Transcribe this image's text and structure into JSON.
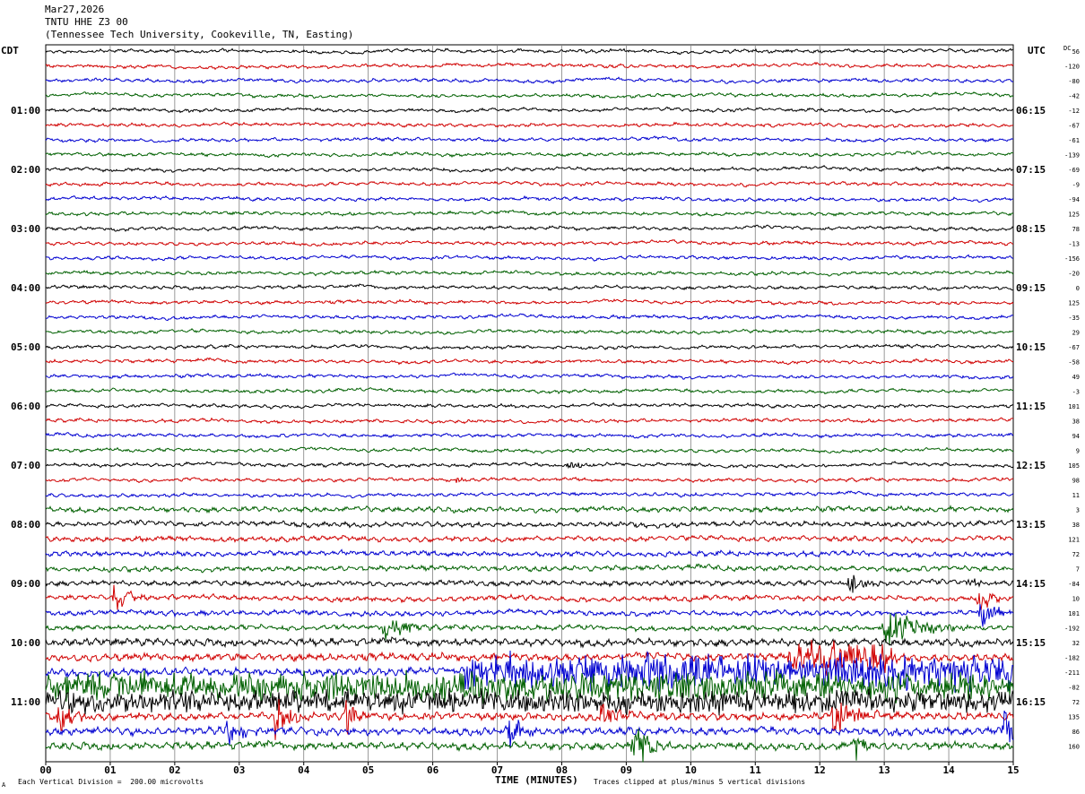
{
  "header": {
    "date": "Mar27,2026",
    "station": "TNTU HHE Z3 00",
    "location": "(Tennessee Tech University, Cookeville, TN, Easting)"
  },
  "axis_labels": {
    "left_timezone": "CDT",
    "right_timezone": "UTC",
    "dc_label": "DC"
  },
  "footer": {
    "scale_note": "Each Vertical Division =  200.00 microvolts",
    "x_axis_title": "TIME (MINUTES)",
    "clip_note": "Traces clipped at plus/minus 5 vertical divisions",
    "corner_mark": "A"
  },
  "colors": {
    "trace_cycle": [
      "#000000",
      "#d00000",
      "#0000d0",
      "#006000"
    ],
    "grid": "#808080",
    "background": "#ffffff"
  },
  "chart_data": {
    "type": "line",
    "subtype": "helicorder",
    "x_ticks": [
      "00",
      "01",
      "02",
      "03",
      "04",
      "05",
      "06",
      "07",
      "08",
      "09",
      "10",
      "11",
      "12",
      "13",
      "14",
      "15"
    ],
    "xlim": [
      0,
      15
    ],
    "minutes_per_line": 15,
    "num_lines": 48,
    "left_time_labels": [
      "01:00",
      "02:00",
      "03:00",
      "04:00",
      "05:00",
      "06:00",
      "07:00",
      "08:00",
      "09:00",
      "10:00",
      "11:00"
    ],
    "right_time_labels": [
      "06:15",
      "07:15",
      "08:15",
      "09:15",
      "10:15",
      "11:15",
      "12:15",
      "13:15",
      "14:15",
      "15:15",
      "16:15"
    ],
    "dc_offsets": [
      56,
      -120,
      -80,
      -42,
      -12,
      -67,
      -61,
      -139,
      -69,
      -9,
      -94,
      125,
      78,
      -13,
      -156,
      -20,
      0,
      125,
      -35,
      29,
      -67,
      -58,
      49,
      -3,
      101,
      38,
      94,
      9,
      105,
      98,
      11,
      3,
      38,
      121,
      72,
      7,
      -84,
      10,
      101,
      -192,
      32,
      -182,
      -211,
      -82,
      72,
      135,
      86,
      160
    ],
    "events": [
      {
        "line": 36,
        "minute": 12.45,
        "amplitude_div": 3,
        "duration_min": 0.5
      },
      {
        "line": 37,
        "minute": 1.05,
        "amplitude_div": 4,
        "duration_min": 0.5
      },
      {
        "line": 37,
        "minute": 14.45,
        "amplitude_div": 4,
        "duration_min": 0.4
      },
      {
        "line": 38,
        "minute": 1.85,
        "amplitude_div": 1,
        "duration_min": 0.4
      },
      {
        "line": 38,
        "minute": 14.5,
        "amplitude_div": 4,
        "duration_min": 0.5
      },
      {
        "line": 39,
        "minute": 5.25,
        "amplitude_div": 3,
        "duration_min": 0.7
      },
      {
        "line": 39,
        "minute": 13.0,
        "amplitude_div": 4,
        "duration_min": 1.3
      },
      {
        "line": 29,
        "minute": 6.35,
        "amplitude_div": 1,
        "duration_min": 0.2
      },
      {
        "line": 28,
        "minute": 8.1,
        "amplitude_div": 1,
        "duration_min": 0.6
      },
      {
        "line": 36,
        "minute": 14.3,
        "amplitude_div": 1,
        "duration_min": 0.4
      },
      {
        "line": 45,
        "minute": 0.2,
        "amplitude_div": 5,
        "duration_min": 0.5
      },
      {
        "line": 45,
        "minute": 3.55,
        "amplitude_div": 5,
        "duration_min": 0.6
      },
      {
        "line": 45,
        "minute": 4.65,
        "amplitude_div": 4,
        "duration_min": 0.4
      },
      {
        "line": 45,
        "minute": 8.6,
        "amplitude_div": 3,
        "duration_min": 0.6
      },
      {
        "line": 45,
        "minute": 12.2,
        "amplitude_div": 5,
        "duration_min": 0.7
      },
      {
        "line": 46,
        "minute": 2.8,
        "amplitude_div": 4,
        "duration_min": 0.5
      },
      {
        "line": 46,
        "minute": 7.2,
        "amplitude_div": 4,
        "duration_min": 0.5
      },
      {
        "line": 46,
        "minute": 14.85,
        "amplitude_div": 5,
        "duration_min": 0.5
      },
      {
        "line": 47,
        "minute": 9.1,
        "amplitude_div": 5,
        "duration_min": 0.6
      },
      {
        "line": 47,
        "minute": 12.55,
        "amplitude_div": 3,
        "duration_min": 0.4
      }
    ],
    "noisy_segments": [
      {
        "line": 42,
        "from": 6.5,
        "to": 15,
        "amplitude_div": 2.5
      },
      {
        "line": 43,
        "from": 0,
        "to": 15,
        "amplitude_div": 2
      },
      {
        "line": 44,
        "from": 0,
        "to": 15,
        "amplitude_div": 1.5
      },
      {
        "line": 41,
        "from": 11.5,
        "to": 13.2,
        "amplitude_div": 2.5
      }
    ]
  }
}
